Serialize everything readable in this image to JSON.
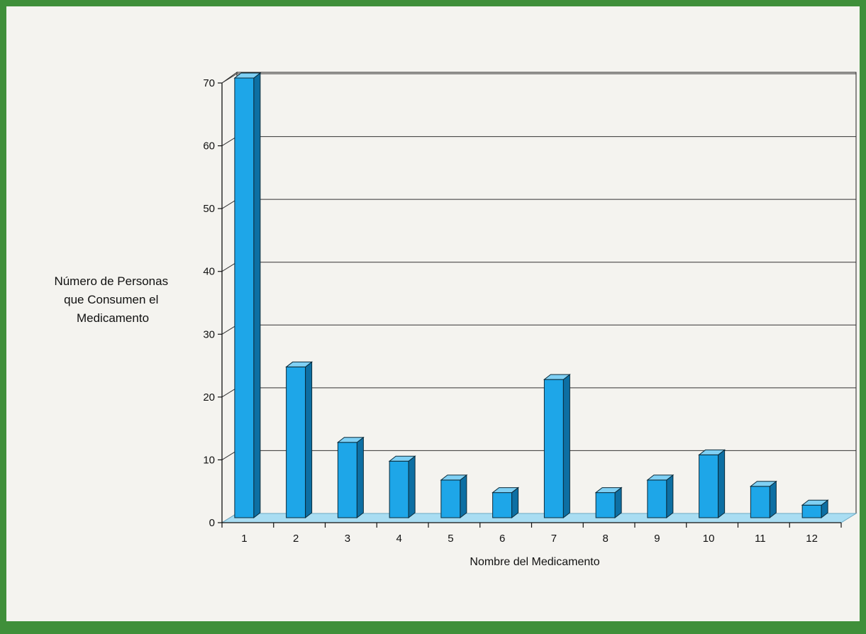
{
  "colors": {
    "frame": "#3f8f3a",
    "background": "#f4f3ef",
    "bar_front": "#1ea6e8",
    "bar_top": "#7fd0f4",
    "bar_side": "#0d6fa3",
    "floor": "#a9ddf2",
    "gridline": "#333333"
  },
  "chart_data": {
    "type": "bar",
    "style": "3d-column",
    "ylabel": [
      "Número de Personas",
      "que Consumen el",
      "Medicamento"
    ],
    "xlabel": "Nombre del Medicamento",
    "categories": [
      "1",
      "2",
      "3",
      "4",
      "5",
      "6",
      "7",
      "8",
      "9",
      "10",
      "11",
      "12"
    ],
    "series": [
      {
        "values": [
          70,
          24,
          12,
          9,
          6,
          4,
          22,
          4,
          6,
          10,
          5,
          2
        ]
      }
    ],
    "ylim": [
      0,
      70
    ],
    "yticks": [
      "0",
      "10",
      "20",
      "30",
      "40",
      "50",
      "60",
      "70"
    ],
    "grid": "horizontal",
    "legend": "none"
  }
}
